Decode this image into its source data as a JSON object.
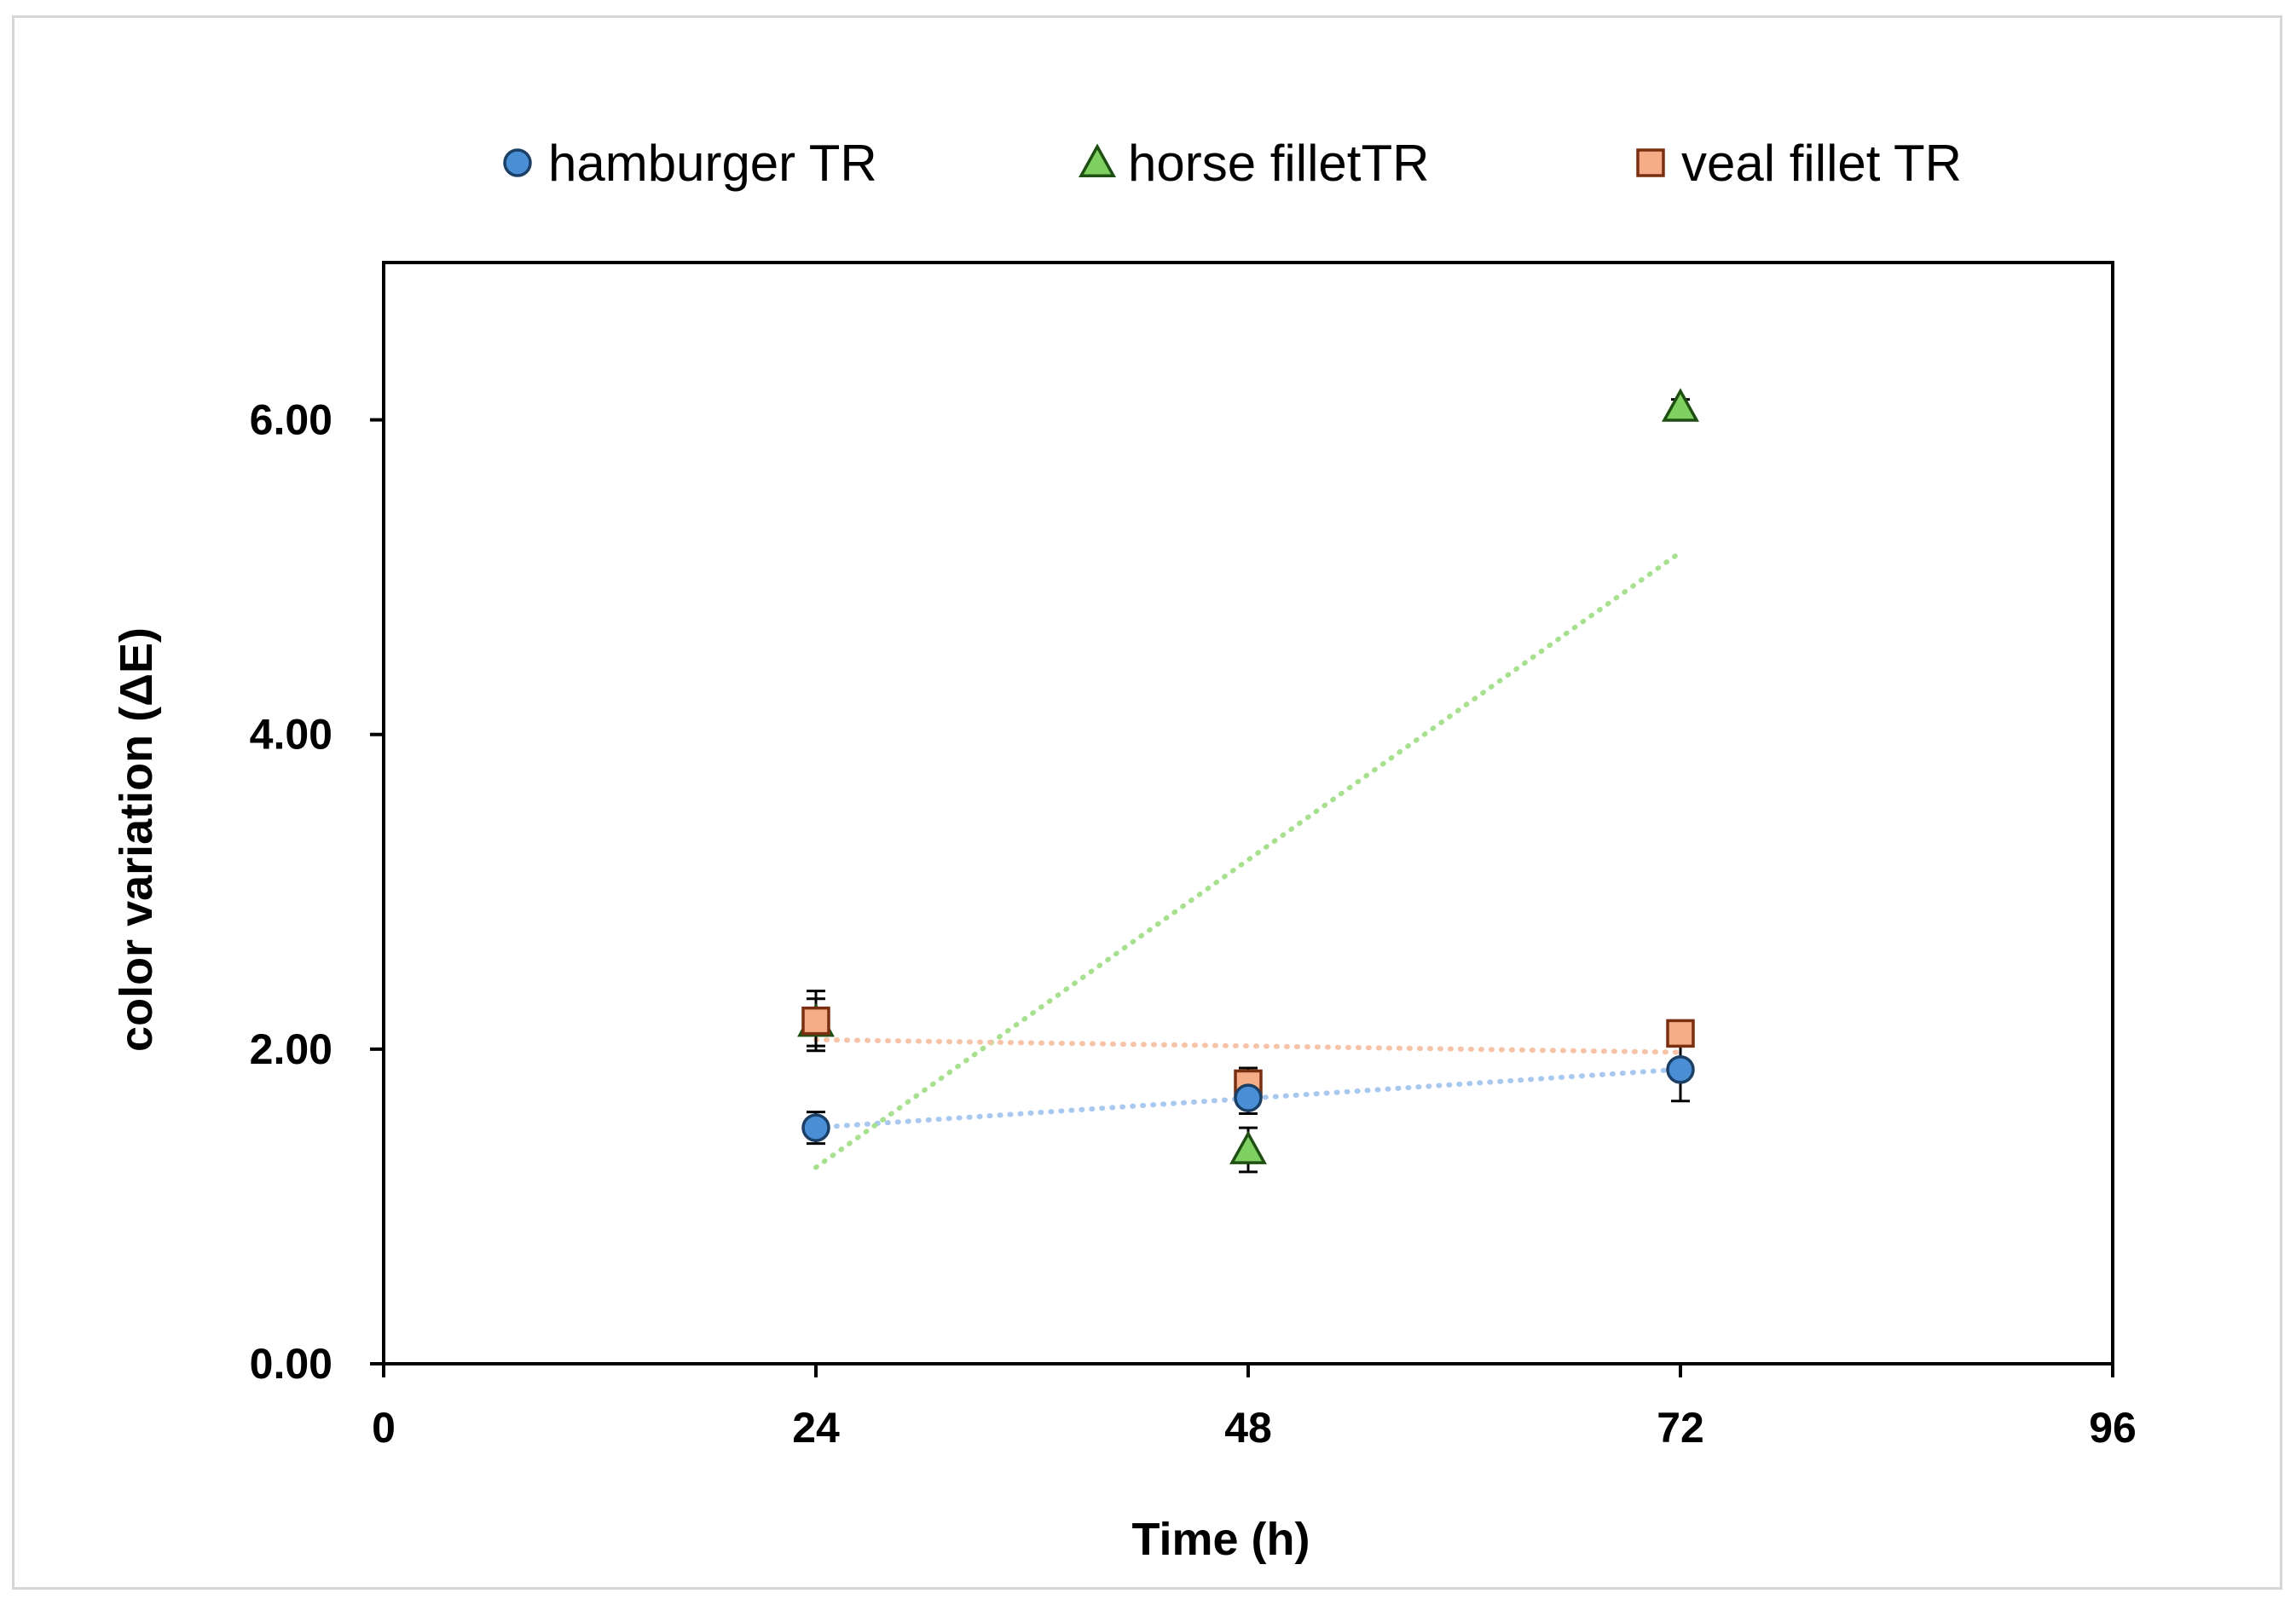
{
  "chart_data": {
    "type": "scatter",
    "title": "",
    "xlabel": "Time (h)",
    "ylabel": "color variation (ΔE)",
    "xlim": [
      0,
      96
    ],
    "ylim": [
      0,
      7
    ],
    "x_ticks": [
      0,
      24,
      48,
      72,
      96
    ],
    "x_tick_labels": [
      "0",
      "24",
      "48",
      "72",
      "96"
    ],
    "y_ticks": [
      0,
      2,
      4,
      6
    ],
    "y_tick_labels": [
      "0.00",
      "2.00",
      "4.00",
      "6.00"
    ],
    "grid": false,
    "legend_position": "top",
    "trendlines": "linear, dotted",
    "series": [
      {
        "name": "hamburger TR",
        "marker": "circle",
        "color": "#4a8fd6",
        "trend_color": "#a9c8ef",
        "x": [
          24,
          48,
          72
        ],
        "y": [
          1.5,
          1.69,
          1.87
        ],
        "error": [
          0.1,
          0.1,
          0.2
        ]
      },
      {
        "name": "horse filletTR",
        "marker": "triangle",
        "color": "#7ed060",
        "trend_color": "#a7e08f",
        "x": [
          24,
          48,
          72
        ],
        "y": [
          2.17,
          1.36,
          6.08
        ],
        "error": [
          0.15,
          0.14,
          0.05
        ]
      },
      {
        "name": "veal fillet TR",
        "marker": "square",
        "color": "#f4ad86",
        "trend_color": "#f7c3a6",
        "x": [
          24,
          48,
          72
        ],
        "y": [
          2.18,
          1.78,
          2.1
        ],
        "error": [
          0.19,
          0.1,
          0.05
        ]
      }
    ]
  }
}
